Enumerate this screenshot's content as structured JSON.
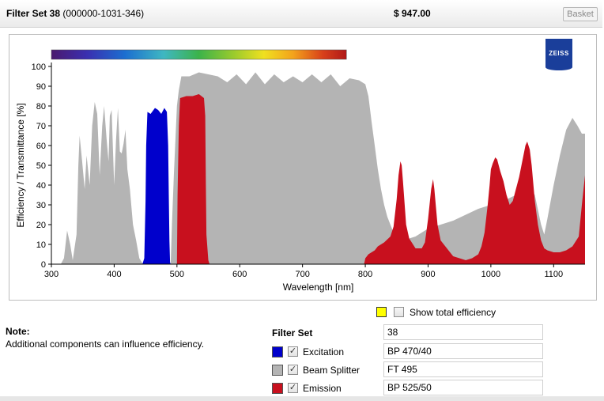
{
  "header": {
    "title_bold": "Filter Set 38",
    "title_rest": "(000000-1031-346)",
    "price": "$ 947.00",
    "basket_label": "Basket"
  },
  "logo": {
    "text": "ZEISS"
  },
  "chart_data": {
    "type": "area",
    "title": "",
    "xlabel": "Wavelength [nm]",
    "ylabel": "Efficiency / Transmittance [%]",
    "xlim": [
      300,
      1150
    ],
    "ylim": [
      0,
      100
    ],
    "xticks": [
      300,
      400,
      500,
      600,
      700,
      800,
      900,
      1000,
      1100
    ],
    "yticks": [
      0,
      10,
      20,
      30,
      40,
      50,
      60,
      70,
      80,
      90,
      100
    ],
    "spectrum_bar": {
      "x_range": [
        300,
        770
      ]
    },
    "series": [
      {
        "name": "Beam Splitter",
        "color": "#b4b4b4",
        "points": [
          [
            315,
            0
          ],
          [
            320,
            3
          ],
          [
            325,
            17
          ],
          [
            330,
            10
          ],
          [
            334,
            2
          ],
          [
            340,
            15
          ],
          [
            343,
            50
          ],
          [
            345,
            65
          ],
          [
            349,
            52
          ],
          [
            353,
            38
          ],
          [
            356,
            55
          ],
          [
            361,
            40
          ],
          [
            365,
            70
          ],
          [
            369,
            82
          ],
          [
            373,
            76
          ],
          [
            377,
            45
          ],
          [
            381,
            70
          ],
          [
            384,
            80
          ],
          [
            388,
            63
          ],
          [
            391,
            52
          ],
          [
            393,
            75
          ],
          [
            396,
            78
          ],
          [
            400,
            40
          ],
          [
            403,
            63
          ],
          [
            406,
            79
          ],
          [
            409,
            57
          ],
          [
            412,
            56
          ],
          [
            415,
            61
          ],
          [
            418,
            68
          ],
          [
            421,
            48
          ],
          [
            425,
            38
          ],
          [
            430,
            20
          ],
          [
            435,
            12
          ],
          [
            440,
            3
          ],
          [
            446,
            0
          ],
          [
            490,
            0
          ],
          [
            492,
            20
          ],
          [
            495,
            45
          ],
          [
            500,
            80
          ],
          [
            503,
            88
          ],
          [
            507,
            95
          ],
          [
            520,
            95
          ],
          [
            535,
            97
          ],
          [
            550,
            96
          ],
          [
            565,
            95
          ],
          [
            580,
            92
          ],
          [
            595,
            96
          ],
          [
            610,
            91
          ],
          [
            625,
            97
          ],
          [
            640,
            91
          ],
          [
            655,
            96
          ],
          [
            670,
            92
          ],
          [
            685,
            95
          ],
          [
            700,
            92
          ],
          [
            715,
            96
          ],
          [
            730,
            92
          ],
          [
            745,
            96
          ],
          [
            760,
            90
          ],
          [
            775,
            94
          ],
          [
            790,
            93
          ],
          [
            800,
            91
          ],
          [
            805,
            85
          ],
          [
            810,
            72
          ],
          [
            815,
            60
          ],
          [
            820,
            48
          ],
          [
            825,
            38
          ],
          [
            830,
            30
          ],
          [
            835,
            24
          ],
          [
            840,
            20
          ],
          [
            845,
            16
          ],
          [
            850,
            14
          ],
          [
            860,
            13
          ],
          [
            870,
            13
          ],
          [
            880,
            14
          ],
          [
            890,
            16
          ],
          [
            900,
            18
          ],
          [
            920,
            20
          ],
          [
            940,
            22
          ],
          [
            960,
            25
          ],
          [
            980,
            28
          ],
          [
            1000,
            30
          ],
          [
            1020,
            32
          ],
          [
            1040,
            35
          ],
          [
            1060,
            40
          ],
          [
            1070,
            35
          ],
          [
            1080,
            20
          ],
          [
            1085,
            15
          ],
          [
            1090,
            23
          ],
          [
            1100,
            40
          ],
          [
            1110,
            55
          ],
          [
            1120,
            68
          ],
          [
            1130,
            74
          ],
          [
            1138,
            70
          ],
          [
            1145,
            66
          ],
          [
            1150,
            66
          ],
          [
            1150,
            0
          ]
        ]
      },
      {
        "name": "Excitation",
        "color": "#0000cc",
        "points": [
          [
            445,
            0
          ],
          [
            448,
            3
          ],
          [
            450,
            32
          ],
          [
            451,
            60
          ],
          [
            453,
            77
          ],
          [
            458,
            76
          ],
          [
            465,
            79
          ],
          [
            470,
            78
          ],
          [
            475,
            76
          ],
          [
            480,
            79
          ],
          [
            484,
            77
          ],
          [
            486,
            60
          ],
          [
            487,
            35
          ],
          [
            488,
            12
          ],
          [
            489,
            1
          ],
          [
            490,
            0
          ]
        ]
      },
      {
        "name": "Emission",
        "color": "#c8101e",
        "points": [
          [
            500,
            0
          ],
          [
            501,
            35
          ],
          [
            503,
            70
          ],
          [
            505,
            84
          ],
          [
            515,
            85
          ],
          [
            525,
            85
          ],
          [
            535,
            86
          ],
          [
            543,
            84
          ],
          [
            545,
            75
          ],
          [
            546,
            40
          ],
          [
            547,
            15
          ],
          [
            550,
            2
          ],
          [
            552,
            0
          ],
          [
            798,
            0
          ],
          [
            800,
            3
          ],
          [
            805,
            5
          ],
          [
            810,
            6
          ],
          [
            815,
            7
          ],
          [
            820,
            9
          ],
          [
            830,
            11
          ],
          [
            840,
            14
          ],
          [
            845,
            19
          ],
          [
            850,
            33
          ],
          [
            853,
            45
          ],
          [
            856,
            52
          ],
          [
            858,
            50
          ],
          [
            860,
            42
          ],
          [
            865,
            20
          ],
          [
            870,
            13
          ],
          [
            880,
            8
          ],
          [
            890,
            8
          ],
          [
            895,
            11
          ],
          [
            900,
            23
          ],
          [
            905,
            38
          ],
          [
            908,
            43
          ],
          [
            910,
            38
          ],
          [
            915,
            20
          ],
          [
            920,
            12
          ],
          [
            930,
            8
          ],
          [
            940,
            4
          ],
          [
            950,
            3
          ],
          [
            960,
            2
          ],
          [
            970,
            3
          ],
          [
            980,
            5
          ],
          [
            985,
            9
          ],
          [
            990,
            16
          ],
          [
            995,
            30
          ],
          [
            998,
            40
          ],
          [
            1000,
            48
          ],
          [
            1003,
            51
          ],
          [
            1007,
            54
          ],
          [
            1010,
            53
          ],
          [
            1015,
            47
          ],
          [
            1020,
            42
          ],
          [
            1025,
            35
          ],
          [
            1030,
            30
          ],
          [
            1035,
            32
          ],
          [
            1040,
            38
          ],
          [
            1045,
            44
          ],
          [
            1050,
            52
          ],
          [
            1055,
            60
          ],
          [
            1058,
            62
          ],
          [
            1062,
            58
          ],
          [
            1065,
            50
          ],
          [
            1070,
            32
          ],
          [
            1075,
            20
          ],
          [
            1080,
            12
          ],
          [
            1085,
            8
          ],
          [
            1090,
            7
          ],
          [
            1100,
            6
          ],
          [
            1110,
            6
          ],
          [
            1120,
            7
          ],
          [
            1130,
            9
          ],
          [
            1140,
            14
          ],
          [
            1145,
            30
          ],
          [
            1150,
            45
          ],
          [
            1150,
            0
          ]
        ]
      }
    ]
  },
  "total_efficiency": {
    "label": "Show total efficiency",
    "swatch_color": "#ffff00",
    "checked": false
  },
  "note": {
    "title": "Note:",
    "text": "Additional components can influence efficiency."
  },
  "filter_table": {
    "header_label": "Filter Set",
    "header_value": "38",
    "rows": [
      {
        "label": "Excitation",
        "value": "BP 470/40",
        "color": "#0000cc",
        "checked": true
      },
      {
        "label": "Beam Splitter",
        "value": "FT 495",
        "color": "#b4b4b4",
        "checked": true
      },
      {
        "label": "Emission",
        "value": "BP 525/50",
        "color": "#c8101e",
        "checked": true
      }
    ]
  }
}
